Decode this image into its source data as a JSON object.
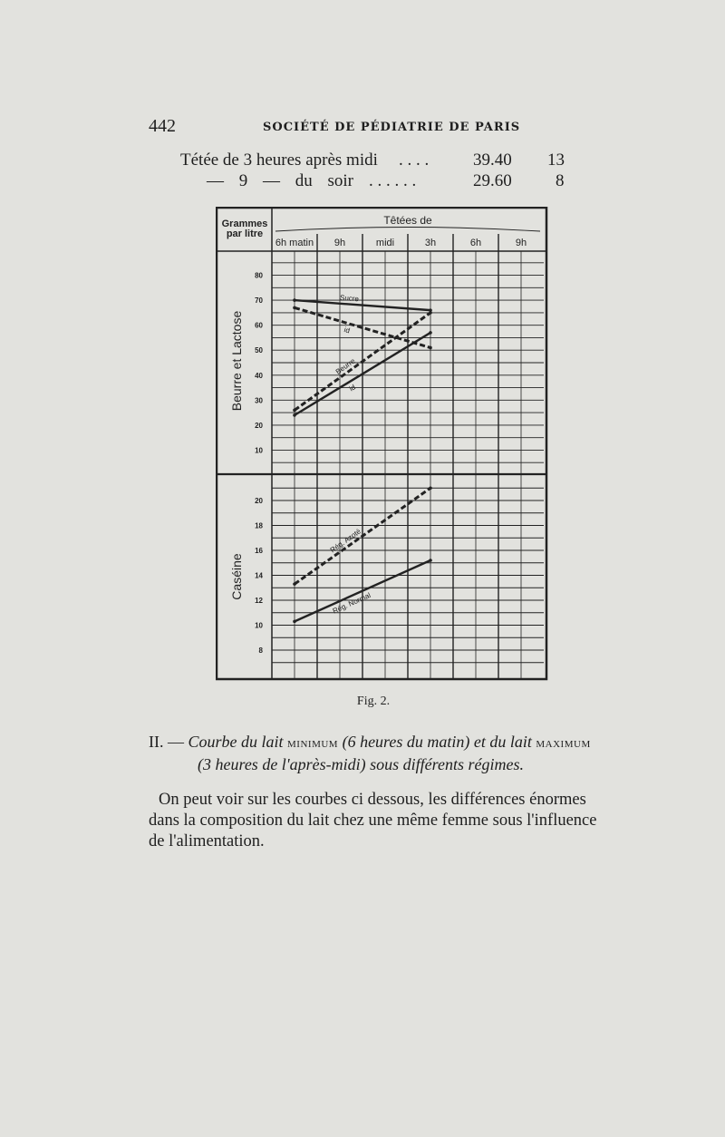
{
  "page": {
    "number": "442",
    "running_head": "SOCIÉTÉ DE PÉDIATRIE DE PARIS"
  },
  "table_rows": [
    {
      "label": "Tétée de 3 heures après midi",
      "dots": ". . . .",
      "value": "39.40",
      "count": "13"
    },
    {
      "label": "— 9 — du soir",
      "dots": ". . . . . .",
      "value": "29.60",
      "count": "8"
    }
  ],
  "figure": {
    "label": "Fig. 2.",
    "caption": {
      "line1_prefix": "II. — ",
      "line1_a": "Courbe du lait ",
      "line1_sc1": "minimum",
      "line1_b": " (6 heures du matin) et du lait ",
      "line1_sc2": "maximum",
      "line2": "(3 heures de l'après-midi) sous différents régimes."
    }
  },
  "paragraph": [
    "On peut voir sur les courbes ci dessous, les différences énormes",
    "dans la composition du lait chez une même femme sous l'influence",
    "de l'alimentation."
  ],
  "chart_data": [
    {
      "type": "line",
      "title": "Têtées de",
      "corner_label": [
        "Grammes",
        "par litre"
      ],
      "categories": [
        "6h matin",
        "9h",
        "midi",
        "3h",
        "6h",
        "9h"
      ],
      "ylabel": "Beurre et Lactose",
      "ylim": [
        0,
        90
      ],
      "yticks": [
        10,
        20,
        30,
        40,
        50,
        60,
        70,
        80
      ],
      "grid": true,
      "series": [
        {
          "name": "Sucre",
          "style": "solid",
          "x": [
            "6h matin",
            "3h"
          ],
          "values": [
            70,
            66
          ]
        },
        {
          "name": "id",
          "style": "dashed",
          "x": [
            "6h matin",
            "3h"
          ],
          "values": [
            67,
            51
          ]
        },
        {
          "name": "Beurre",
          "style": "dashed",
          "x": [
            "6h matin",
            "3h"
          ],
          "values": [
            26,
            65
          ]
        },
        {
          "name": "id",
          "style": "solid",
          "x": [
            "6h matin",
            "3h"
          ],
          "values": [
            24,
            57
          ]
        }
      ]
    },
    {
      "type": "line",
      "categories": [
        "6h matin",
        "9h",
        "midi",
        "3h",
        "6h",
        "9h"
      ],
      "ylabel": "Caséine",
      "ylim": [
        6,
        22
      ],
      "yticks": [
        8,
        10,
        12,
        14,
        16,
        18,
        20
      ],
      "grid": true,
      "series": [
        {
          "name": "Rég. Azoté",
          "style": "dashed",
          "x": [
            "6h matin",
            "3h"
          ],
          "values": [
            13.3,
            21
          ]
        },
        {
          "name": "Rég. Normal",
          "style": "solid",
          "x": [
            "6h matin",
            "3h"
          ],
          "values": [
            10.3,
            15.2
          ]
        }
      ]
    }
  ],
  "colors": {
    "paper": "#e2e2de",
    "ink": "#1e1e1e"
  }
}
